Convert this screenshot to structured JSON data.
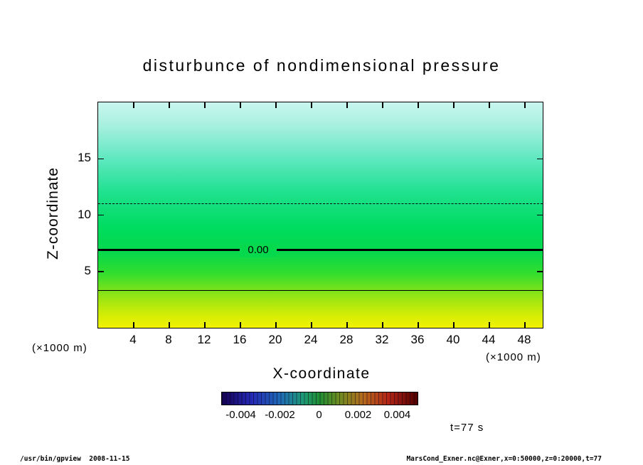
{
  "title": "disturbunce of nondimensional pressure",
  "time_label": "t=77 s",
  "footer": {
    "left": "/usr/bin/gpview  2008-11-15",
    "right": "MarsCond_Exner.nc@Exner,x=0:50000,z=0:20000,t=77"
  },
  "chart_data": {
    "type": "heatmap",
    "title": "disturbunce of nondimensional pressure",
    "xlabel": "X-coordinate",
    "ylabel": "Z-coordinate",
    "x_unit": "(×1000 m)",
    "y_unit": "(×1000 m)",
    "xlim": [
      0,
      50
    ],
    "ylim": [
      0,
      20
    ],
    "x_ticks": [
      4,
      8,
      12,
      16,
      20,
      24,
      28,
      32,
      36,
      40,
      44,
      48
    ],
    "y_ticks": [
      5,
      10,
      15
    ],
    "grid": false,
    "field": {
      "description": "Nondimensional pressure disturbance, horizontally nearly uniform, decreasing with height: yellow (positive) at bottom through green to pale cyan (negative) at top",
      "gradient_stops": [
        {
          "pos": 0,
          "color": "#c9f6ee"
        },
        {
          "pos": 10,
          "color": "#a9f0e0"
        },
        {
          "pos": 25,
          "color": "#5fe8c0"
        },
        {
          "pos": 40,
          "color": "#1fe18f"
        },
        {
          "pos": 55,
          "color": "#00dc60"
        },
        {
          "pos": 66,
          "color": "#04d84d"
        },
        {
          "pos": 76,
          "color": "#33dd2e"
        },
        {
          "pos": 86,
          "color": "#93e414"
        },
        {
          "pos": 94,
          "color": "#d2ec06"
        },
        {
          "pos": 100,
          "color": "#f2f200"
        }
      ]
    },
    "contours": [
      {
        "value": -0.001,
        "z": 11.0,
        "style": "dashed",
        "label": ""
      },
      {
        "value": 0.0,
        "z": 6.9,
        "style": "solid-thick",
        "label": "0.00",
        "label_x_frac": 0.36,
        "label_bg": "#04d84d"
      },
      {
        "value": 0.001,
        "z": 3.3,
        "style": "solid-thin",
        "label": ""
      }
    ],
    "z_profile_estimate": {
      "z": [
        0,
        3.3,
        6.9,
        11.0,
        20
      ],
      "value": [
        0.0015,
        0.001,
        0.0,
        -0.001,
        -0.0025
      ]
    },
    "colorbar": {
      "min": -0.005,
      "max": 0.005,
      "ticks": [
        -0.004,
        -0.002,
        0,
        0.002,
        0.004
      ],
      "tick_labels": [
        "-0.004",
        "-0.002",
        "0",
        "0.002",
        "0.004"
      ],
      "gradient_stops": [
        {
          "pos": 0,
          "color": "#150050"
        },
        {
          "pos": 15,
          "color": "#2428b4"
        },
        {
          "pos": 30,
          "color": "#1e6ab4"
        },
        {
          "pos": 42,
          "color": "#1f9a72"
        },
        {
          "pos": 50,
          "color": "#1f8c32"
        },
        {
          "pos": 60,
          "color": "#6f8c20"
        },
        {
          "pos": 72,
          "color": "#b46a1e"
        },
        {
          "pos": 85,
          "color": "#b42416"
        },
        {
          "pos": 100,
          "color": "#500000"
        }
      ]
    }
  }
}
